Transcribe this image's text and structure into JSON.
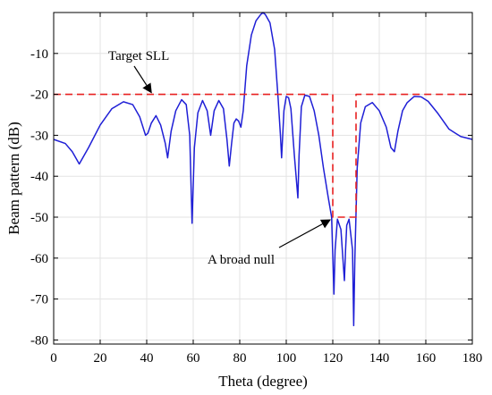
{
  "chart_data": {
    "type": "line",
    "xlabel": "Theta (degree)",
    "ylabel": "Beam pattern (dB)",
    "xlim": [
      0,
      180
    ],
    "ylim": [
      -81,
      0
    ],
    "xticks": [
      0,
      20,
      40,
      60,
      80,
      100,
      120,
      140,
      160,
      180
    ],
    "yticks": [
      -10,
      -20,
      -30,
      -40,
      -50,
      -60,
      -70,
      -80
    ],
    "grid": true,
    "legend": "none",
    "series": [
      {
        "style": "solid",
        "color": "#1f1fd6",
        "x": [
          0,
          5,
          8,
          11,
          15,
          20,
          25,
          30,
          34,
          37,
          39.5,
          40.5,
          42,
          44,
          46,
          48,
          49,
          50.5,
          52.5,
          55,
          57,
          58.5,
          59.5,
          60.5,
          62,
          64,
          66,
          67.5,
          68,
          69,
          71,
          73,
          74.5,
          75.5,
          76.5,
          77.5,
          78.5,
          79.5,
          80.5,
          81.5,
          83,
          85,
          87,
          89,
          90,
          91,
          93,
          95,
          96.5,
          97.5,
          98,
          99,
          100,
          101,
          102,
          103.5,
          105,
          105.5,
          106.5,
          108,
          110,
          112,
          114,
          116,
          118,
          119.5,
          120.5,
          121,
          122,
          123.5,
          125,
          125.5,
          126,
          127,
          128.5,
          129,
          129.5,
          130.5,
          132,
          134,
          137,
          140,
          143,
          145,
          146.5,
          148,
          150,
          152,
          155,
          158,
          161,
          165,
          170,
          175,
          180
        ],
        "values": [
          -31,
          -32,
          -34,
          -37,
          -33,
          -27.5,
          -23.5,
          -21.8,
          -22.5,
          -25.5,
          -30,
          -29.5,
          -27,
          -25.2,
          -27.5,
          -32,
          -35.5,
          -29,
          -24,
          -21.3,
          -22.5,
          -30,
          -51.5,
          -33,
          -24.5,
          -21.5,
          -24,
          -30,
          -28,
          -24,
          -21.5,
          -23.5,
          -31,
          -37.5,
          -32,
          -27,
          -26,
          -26.5,
          -28,
          -24,
          -13,
          -5.5,
          -2,
          -0.5,
          0,
          -0.5,
          -2.5,
          -9,
          -21,
          -30,
          -35.5,
          -24,
          -20.5,
          -20.8,
          -23.5,
          -35,
          -45.3,
          -35,
          -23,
          -20.2,
          -20.5,
          -24,
          -30,
          -38,
          -45,
          -50,
          -68.8,
          -58,
          -50.5,
          -53,
          -65.5,
          -58,
          -52,
          -50.5,
          -58,
          -76.5,
          -60,
          -38,
          -27,
          -23,
          -22,
          -24,
          -28,
          -33,
          -34,
          -29,
          -24,
          -22,
          -20.5,
          -20.6,
          -21.7,
          -24.5,
          -28.5,
          -30.3,
          -31
        ]
      },
      {
        "style": "dashed",
        "color": "#e82020",
        "x": [
          0,
          120,
          120,
          130,
          130,
          180
        ],
        "values": [
          -20,
          -20,
          -50,
          -50,
          -20,
          -20
        ]
      }
    ],
    "annotations": [
      {
        "text": "Target SLL",
        "x": 42,
        "y": -20
      },
      {
        "text": "A  broad null",
        "x": 120,
        "y": -50
      }
    ]
  }
}
